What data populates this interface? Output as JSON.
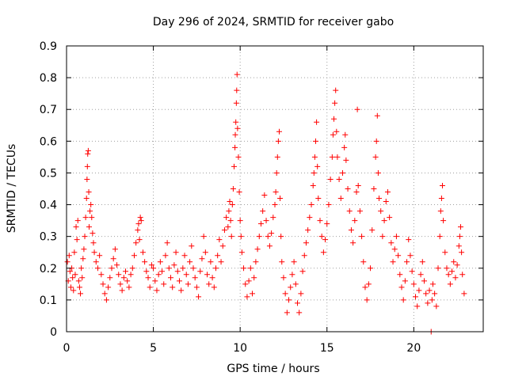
{
  "chart_data": {
    "type": "scatter",
    "title": "Day 296 of 2024, SRMTID for receiver gabo",
    "xlabel": "GPS time / hours",
    "ylabel": "SRMTID / TECUs",
    "xlim": [
      0,
      24
    ],
    "ylim": [
      0,
      0.9
    ],
    "xticks": [
      "0",
      "5",
      "10",
      "15",
      "20"
    ],
    "yticks": [
      "0",
      "0.1",
      "0.2",
      "0.3",
      "0.4",
      "0.5",
      "0.6",
      "0.7",
      "0.8",
      "0.9"
    ],
    "grid": true,
    "marker": "plus",
    "color": "#ff0000",
    "series": [
      {
        "name": "SRMTID",
        "points": [
          [
            0.05,
            0.22
          ],
          [
            0.1,
            0.16
          ],
          [
            0.15,
            0.24
          ],
          [
            0.2,
            0.19
          ],
          [
            0.25,
            0.14
          ],
          [
            0.3,
            0.2
          ],
          [
            0.35,
            0.17
          ],
          [
            0.4,
            0.13
          ],
          [
            0.45,
            0.25
          ],
          [
            0.5,
            0.18
          ],
          [
            0.55,
            0.33
          ],
          [
            0.6,
            0.29
          ],
          [
            0.65,
            0.35
          ],
          [
            0.7,
            0.16
          ],
          [
            0.75,
            0.14
          ],
          [
            0.8,
            0.12
          ],
          [
            0.85,
            0.2
          ],
          [
            0.9,
            0.17
          ],
          [
            0.95,
            0.23
          ],
          [
            1.0,
            0.26
          ],
          [
            1.05,
            0.3
          ],
          [
            1.1,
            0.36
          ],
          [
            1.15,
            0.42
          ],
          [
            1.18,
            0.48
          ],
          [
            1.2,
            0.52
          ],
          [
            1.22,
            0.56
          ],
          [
            1.25,
            0.57
          ],
          [
            1.28,
            0.44
          ],
          [
            1.3,
            0.33
          ],
          [
            1.35,
            0.38
          ],
          [
            1.4,
            0.4
          ],
          [
            1.45,
            0.36
          ],
          [
            1.5,
            0.31
          ],
          [
            1.55,
            0.28
          ],
          [
            1.6,
            0.25
          ],
          [
            1.7,
            0.22
          ],
          [
            1.8,
            0.2
          ],
          [
            1.9,
            0.24
          ],
          [
            2.0,
            0.18
          ],
          [
            2.1,
            0.15
          ],
          [
            2.2,
            0.12
          ],
          [
            2.3,
            0.1
          ],
          [
            2.4,
            0.14
          ],
          [
            2.5,
            0.17
          ],
          [
            2.6,
            0.2
          ],
          [
            2.7,
            0.23
          ],
          [
            2.8,
            0.26
          ],
          [
            2.9,
            0.21
          ],
          [
            3.0,
            0.18
          ],
          [
            3.1,
            0.15
          ],
          [
            3.2,
            0.13
          ],
          [
            3.3,
            0.17
          ],
          [
            3.4,
            0.19
          ],
          [
            3.5,
            0.16
          ],
          [
            3.6,
            0.14
          ],
          [
            3.7,
            0.18
          ],
          [
            3.8,
            0.2
          ],
          [
            3.9,
            0.24
          ],
          [
            4.0,
            0.28
          ],
          [
            4.1,
            0.32
          ],
          [
            4.15,
            0.34
          ],
          [
            4.2,
            0.29
          ],
          [
            4.25,
            0.36
          ],
          [
            4.3,
            0.35
          ],
          [
            4.4,
            0.25
          ],
          [
            4.5,
            0.22
          ],
          [
            4.6,
            0.19
          ],
          [
            4.7,
            0.17
          ],
          [
            4.8,
            0.14
          ],
          [
            4.9,
            0.21
          ],
          [
            5.0,
            0.2
          ],
          [
            5.1,
            0.16
          ],
          [
            5.2,
            0.13
          ],
          [
            5.3,
            0.18
          ],
          [
            5.4,
            0.22
          ],
          [
            5.5,
            0.19
          ],
          [
            5.6,
            0.15
          ],
          [
            5.7,
            0.24
          ],
          [
            5.8,
            0.28
          ],
          [
            5.9,
            0.2
          ],
          [
            6.0,
            0.17
          ],
          [
            6.1,
            0.14
          ],
          [
            6.2,
            0.21
          ],
          [
            6.3,
            0.25
          ],
          [
            6.4,
            0.19
          ],
          [
            6.5,
            0.16
          ],
          [
            6.6,
            0.13
          ],
          [
            6.7,
            0.2
          ],
          [
            6.8,
            0.24
          ],
          [
            6.9,
            0.18
          ],
          [
            7.0,
            0.15
          ],
          [
            7.1,
            0.22
          ],
          [
            7.2,
            0.27
          ],
          [
            7.3,
            0.2
          ],
          [
            7.4,
            0.17
          ],
          [
            7.5,
            0.14
          ],
          [
            7.6,
            0.11
          ],
          [
            7.7,
            0.19
          ],
          [
            7.8,
            0.23
          ],
          [
            7.9,
            0.3
          ],
          [
            8.0,
            0.25
          ],
          [
            8.1,
            0.18
          ],
          [
            8.2,
            0.15
          ],
          [
            8.3,
            0.22
          ],
          [
            8.4,
            0.17
          ],
          [
            8.5,
            0.14
          ],
          [
            8.6,
            0.2
          ],
          [
            8.7,
            0.24
          ],
          [
            8.8,
            0.29
          ],
          [
            8.9,
            0.22
          ],
          [
            9.0,
            0.27
          ],
          [
            9.1,
            0.32
          ],
          [
            9.2,
            0.36
          ],
          [
            9.3,
            0.33
          ],
          [
            9.35,
            0.38
          ],
          [
            9.4,
            0.41
          ],
          [
            9.45,
            0.35
          ],
          [
            9.5,
            0.3
          ],
          [
            9.55,
            0.4
          ],
          [
            9.6,
            0.45
          ],
          [
            9.65,
            0.52
          ],
          [
            9.7,
            0.58
          ],
          [
            9.72,
            0.62
          ],
          [
            9.75,
            0.66
          ],
          [
            9.78,
            0.72
          ],
          [
            9.8,
            0.76
          ],
          [
            9.82,
            0.81
          ],
          [
            9.85,
            0.64
          ],
          [
            9.9,
            0.55
          ],
          [
            9.95,
            0.44
          ],
          [
            10.0,
            0.35
          ],
          [
            10.05,
            0.3
          ],
          [
            10.1,
            0.25
          ],
          [
            10.2,
            0.2
          ],
          [
            10.3,
            0.15
          ],
          [
            10.4,
            0.11
          ],
          [
            10.5,
            0.16
          ],
          [
            10.6,
            0.2
          ],
          [
            10.7,
            0.12
          ],
          [
            10.8,
            0.17
          ],
          [
            10.9,
            0.22
          ],
          [
            11.0,
            0.26
          ],
          [
            11.1,
            0.3
          ],
          [
            11.2,
            0.34
          ],
          [
            11.3,
            0.38
          ],
          [
            11.4,
            0.43
          ],
          [
            11.5,
            0.35
          ],
          [
            11.6,
            0.3
          ],
          [
            11.7,
            0.27
          ],
          [
            11.8,
            0.31
          ],
          [
            11.9,
            0.36
          ],
          [
            12.0,
            0.4
          ],
          [
            12.05,
            0.44
          ],
          [
            12.1,
            0.5
          ],
          [
            12.15,
            0.55
          ],
          [
            12.2,
            0.6
          ],
          [
            12.25,
            0.63
          ],
          [
            12.3,
            0.42
          ],
          [
            12.35,
            0.3
          ],
          [
            12.4,
            0.22
          ],
          [
            12.5,
            0.17
          ],
          [
            12.6,
            0.12
          ],
          [
            12.7,
            0.06
          ],
          [
            12.8,
            0.1
          ],
          [
            12.9,
            0.14
          ],
          [
            13.0,
            0.18
          ],
          [
            13.1,
            0.22
          ],
          [
            13.2,
            0.15
          ],
          [
            13.3,
            0.09
          ],
          [
            13.4,
            0.06
          ],
          [
            13.5,
            0.12
          ],
          [
            13.6,
            0.19
          ],
          [
            13.7,
            0.24
          ],
          [
            13.8,
            0.28
          ],
          [
            13.9,
            0.32
          ],
          [
            14.0,
            0.36
          ],
          [
            14.1,
            0.4
          ],
          [
            14.2,
            0.46
          ],
          [
            14.25,
            0.5
          ],
          [
            14.3,
            0.55
          ],
          [
            14.35,
            0.6
          ],
          [
            14.4,
            0.66
          ],
          [
            14.45,
            0.52
          ],
          [
            14.5,
            0.42
          ],
          [
            14.6,
            0.35
          ],
          [
            14.7,
            0.3
          ],
          [
            14.8,
            0.25
          ],
          [
            14.9,
            0.29
          ],
          [
            15.0,
            0.34
          ],
          [
            15.1,
            0.4
          ],
          [
            15.2,
            0.48
          ],
          [
            15.3,
            0.55
          ],
          [
            15.35,
            0.62
          ],
          [
            15.4,
            0.67
          ],
          [
            15.45,
            0.72
          ],
          [
            15.5,
            0.76
          ],
          [
            15.55,
            0.63
          ],
          [
            15.6,
            0.55
          ],
          [
            15.7,
            0.48
          ],
          [
            15.8,
            0.42
          ],
          [
            15.9,
            0.5
          ],
          [
            16.0,
            0.58
          ],
          [
            16.05,
            0.62
          ],
          [
            16.1,
            0.54
          ],
          [
            16.2,
            0.45
          ],
          [
            16.3,
            0.38
          ],
          [
            16.4,
            0.32
          ],
          [
            16.5,
            0.28
          ],
          [
            16.6,
            0.35
          ],
          [
            16.7,
            0.44
          ],
          [
            16.75,
            0.7
          ],
          [
            16.8,
            0.46
          ],
          [
            16.9,
            0.38
          ],
          [
            17.0,
            0.3
          ],
          [
            17.1,
            0.22
          ],
          [
            17.2,
            0.14
          ],
          [
            17.3,
            0.1
          ],
          [
            17.4,
            0.15
          ],
          [
            17.5,
            0.2
          ],
          [
            17.6,
            0.32
          ],
          [
            17.7,
            0.45
          ],
          [
            17.8,
            0.55
          ],
          [
            17.85,
            0.6
          ],
          [
            17.9,
            0.68
          ],
          [
            17.95,
            0.5
          ],
          [
            18.0,
            0.42
          ],
          [
            18.1,
            0.38
          ],
          [
            18.2,
            0.3
          ],
          [
            18.3,
            0.35
          ],
          [
            18.4,
            0.41
          ],
          [
            18.5,
            0.44
          ],
          [
            18.6,
            0.36
          ],
          [
            18.7,
            0.28
          ],
          [
            18.8,
            0.22
          ],
          [
            18.9,
            0.26
          ],
          [
            19.0,
            0.3
          ],
          [
            19.1,
            0.24
          ],
          [
            19.2,
            0.18
          ],
          [
            19.3,
            0.14
          ],
          [
            19.4,
            0.1
          ],
          [
            19.5,
            0.16
          ],
          [
            19.6,
            0.22
          ],
          [
            19.7,
            0.29
          ],
          [
            19.8,
            0.24
          ],
          [
            19.9,
            0.19
          ],
          [
            20.0,
            0.15
          ],
          [
            20.1,
            0.11
          ],
          [
            20.2,
            0.08
          ],
          [
            20.3,
            0.13
          ],
          [
            20.4,
            0.18
          ],
          [
            20.5,
            0.22
          ],
          [
            20.6,
            0.16
          ],
          [
            20.7,
            0.12
          ],
          [
            20.8,
            0.09
          ],
          [
            20.9,
            0.13
          ],
          [
            21.0,
            0.0
          ],
          [
            21.05,
            0.1
          ],
          [
            21.1,
            0.15
          ],
          [
            21.2,
            0.12
          ],
          [
            21.3,
            0.08
          ],
          [
            21.4,
            0.2
          ],
          [
            21.5,
            0.3
          ],
          [
            21.55,
            0.38
          ],
          [
            21.6,
            0.42
          ],
          [
            21.65,
            0.46
          ],
          [
            21.7,
            0.35
          ],
          [
            21.8,
            0.25
          ],
          [
            21.9,
            0.2
          ],
          [
            22.0,
            0.18
          ],
          [
            22.1,
            0.15
          ],
          [
            22.2,
            0.19
          ],
          [
            22.3,
            0.22
          ],
          [
            22.4,
            0.17
          ],
          [
            22.5,
            0.21
          ],
          [
            22.6,
            0.27
          ],
          [
            22.65,
            0.3
          ],
          [
            22.7,
            0.33
          ],
          [
            22.75,
            0.25
          ],
          [
            22.8,
            0.18
          ],
          [
            22.9,
            0.12
          ]
        ]
      }
    ]
  }
}
